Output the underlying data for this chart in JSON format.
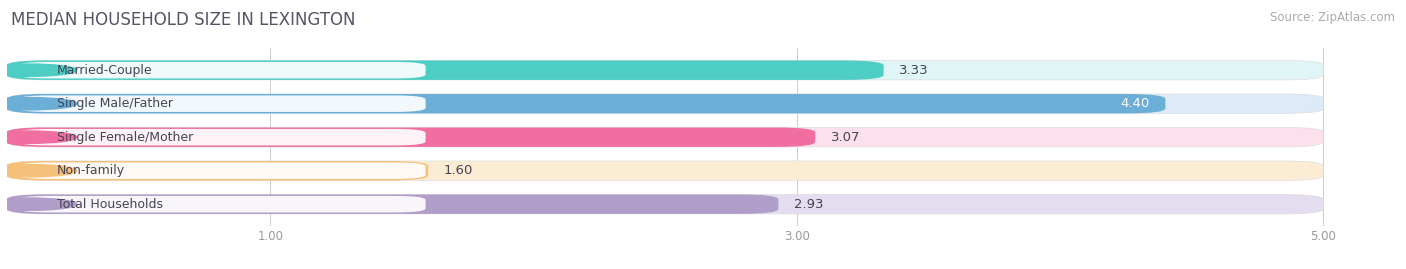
{
  "title": "MEDIAN HOUSEHOLD SIZE IN LEXINGTON",
  "source": "Source: ZipAtlas.com",
  "categories": [
    "Married-Couple",
    "Single Male/Father",
    "Single Female/Mother",
    "Non-family",
    "Total Households"
  ],
  "values": [
    3.33,
    4.4,
    3.07,
    1.6,
    2.93
  ],
  "bar_colors": [
    "#4ecdc4",
    "#6baed6",
    "#f06fa0",
    "#f5c07a",
    "#b09dc8"
  ],
  "bar_bg_colors": [
    "#e0f5f5",
    "#ddeaf7",
    "#fce0ec",
    "#fdecd4",
    "#e4ddf0"
  ],
  "label_bg_color": "#f0f0f0",
  "dot_colors": [
    "#4ecdc4",
    "#6baed6",
    "#f06fa0",
    "#f5c07a",
    "#b09dc8"
  ],
  "xlim": [
    0,
    5.25
  ],
  "xmin": 0,
  "xmax": 5.0,
  "xticks": [
    1.0,
    3.0,
    5.0
  ],
  "label_inside_threshold": 4.1,
  "background_color": "#ffffff",
  "title_color": "#555566",
  "source_color": "#aaaaaa",
  "title_fontsize": 12,
  "source_fontsize": 8.5,
  "value_fontsize": 9.5,
  "category_fontsize": 9,
  "bar_height": 0.58,
  "bar_gap": 0.12
}
